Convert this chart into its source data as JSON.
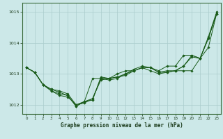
{
  "xlabel": "Graphe pression niveau de la mer (hPa)",
  "bg_color": "#cce8e8",
  "grid_color": "#aacccc",
  "line_color": "#1a5c1a",
  "xlim": [
    -0.5,
    23.5
  ],
  "ylim": [
    1011.7,
    1015.3
  ],
  "yticks": [
    1012,
    1013,
    1014,
    1015
  ],
  "xticks": [
    0,
    1,
    2,
    3,
    4,
    5,
    6,
    7,
    8,
    9,
    10,
    11,
    12,
    13,
    14,
    15,
    16,
    17,
    18,
    19,
    20,
    21,
    22,
    23
  ],
  "series": [
    [
      1013.2,
      1013.05,
      1012.65,
      1012.45,
      1012.35,
      1012.3,
      1011.95,
      1012.1,
      1012.2,
      1012.85,
      1012.8,
      1012.85,
      1013.0,
      1013.1,
      1013.2,
      1013.2,
      1013.05,
      1013.05,
      1013.1,
      1013.25,
      1013.55,
      1013.5,
      1014.15,
      1014.95
    ],
    [
      1013.2,
      1013.05,
      1012.65,
      1012.45,
      1012.3,
      1012.25,
      1012.0,
      1012.1,
      1012.85,
      1012.85,
      1012.85,
      1012.9,
      1012.95,
      1013.1,
      1013.2,
      1013.1,
      1013.0,
      1013.05,
      1013.1,
      1013.1,
      1013.1,
      1013.5,
      1013.85,
      1014.95
    ],
    [
      1013.2,
      1013.05,
      1012.65,
      1012.5,
      1012.45,
      1012.35,
      1012.0,
      1012.05,
      1012.2,
      1012.8,
      1012.85,
      1013.0,
      1013.1,
      1013.1,
      1013.2,
      1013.2,
      1013.05,
      1013.1,
      1013.1,
      1013.25,
      1013.6,
      1013.5,
      1014.2,
      1015.0
    ],
    [
      1013.2,
      1013.05,
      1012.65,
      1012.5,
      1012.4,
      1012.3,
      1011.95,
      1012.1,
      1012.15,
      1012.9,
      1012.85,
      1012.9,
      1013.0,
      1013.15,
      1013.25,
      1013.2,
      1013.1,
      1013.25,
      1013.25,
      1013.6,
      1013.6,
      1013.5,
      1014.15,
      1014.95
    ]
  ]
}
